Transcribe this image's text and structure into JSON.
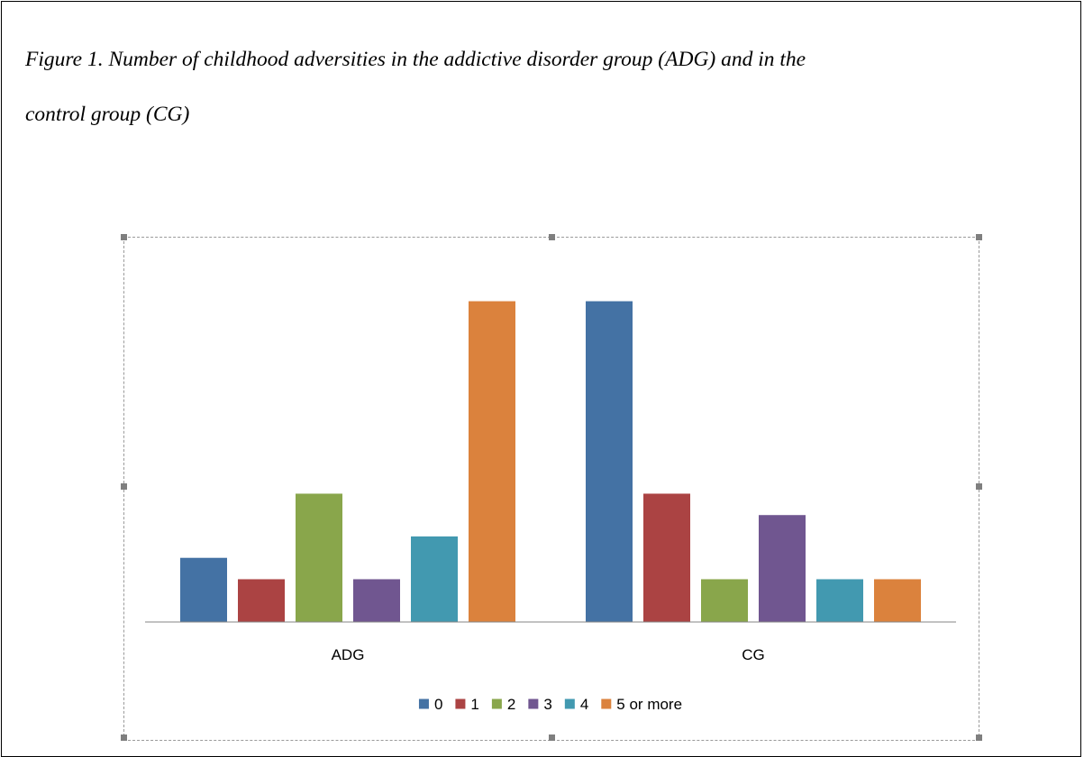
{
  "caption": {
    "line1": "Figure 1. Number of childhood adversities in the addictive disorder group (ADG) and in the",
    "line2": "control group (CG)"
  },
  "chart_data": {
    "type": "bar",
    "categories": [
      "ADG",
      "CG"
    ],
    "series": [
      {
        "name": "0",
        "color": "#4472a4",
        "values": [
          3,
          15
        ]
      },
      {
        "name": "1",
        "color": "#ab4343",
        "values": [
          2,
          6
        ]
      },
      {
        "name": "2",
        "color": "#89a64b",
        "values": [
          6,
          2
        ]
      },
      {
        "name": "3",
        "color": "#705690",
        "values": [
          2,
          5
        ]
      },
      {
        "name": "4",
        "color": "#4299b0",
        "values": [
          4,
          2
        ]
      },
      {
        "name": "5 or more",
        "color": "#db823d",
        "values": [
          15,
          2
        ]
      }
    ],
    "ylim": [
      0,
      16.5
    ],
    "grid": false,
    "y_axis_visible": false,
    "legend_position": "bottom"
  }
}
